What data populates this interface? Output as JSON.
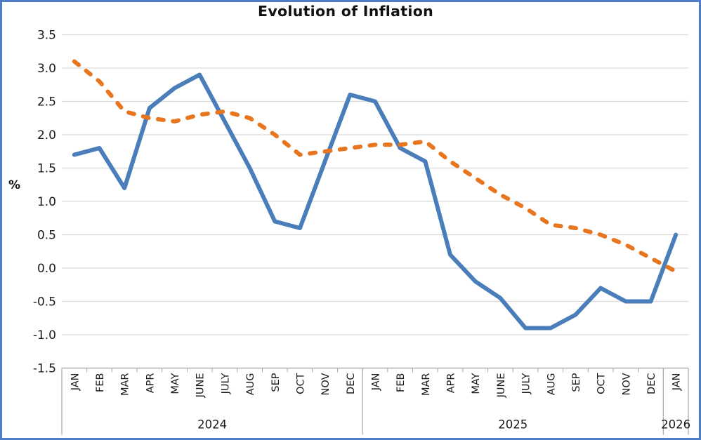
{
  "window": {
    "background_color": "#ffffff",
    "border_color": "#4f7dc8"
  },
  "chart_data": {
    "type": "line",
    "title": "Evolution of Inflation",
    "ylabel": "%",
    "xlabel": "",
    "ylim": [
      -1.5,
      3.5
    ],
    "ytick_step": 0.5,
    "ytick_labels": [
      "3.5",
      "3.0",
      "2.5",
      "2.0",
      "1.5",
      "1.0",
      "0.5",
      "0.0",
      "-0.5",
      "-1.0",
      "-1.5"
    ],
    "grid": true,
    "legend_position": "none",
    "categories": [
      "JAN",
      "FEB",
      "MAR",
      "APR",
      "MAY",
      "JUNE",
      "JULY",
      "AUG",
      "SEP",
      "OCT",
      "NOV",
      "DEC",
      "JAN",
      "FEB",
      "MAR",
      "APR",
      "MAY",
      "JUNE",
      "JULY",
      "AUG",
      "SEP",
      "OCT",
      "NOV",
      "DEC",
      "JAN"
    ],
    "year_groups": [
      {
        "label": "2024",
        "months": 12
      },
      {
        "label": "2025",
        "months": 12
      },
      {
        "label": "2026",
        "months": 1
      }
    ],
    "series": [
      {
        "name": "blue-solid-line",
        "line_style": "solid",
        "color": "#4a7ebb",
        "values": [
          1.7,
          1.8,
          1.2,
          2.4,
          2.7,
          2.9,
          2.2,
          1.5,
          0.7,
          0.6,
          1.6,
          2.6,
          2.5,
          1.8,
          1.6,
          0.2,
          -0.2,
          -0.45,
          -0.9,
          -0.9,
          -0.7,
          -0.3,
          -0.5,
          -0.5,
          0.5
        ]
      },
      {
        "name": "orange-dashed-line",
        "line_style": "dashed",
        "color": "#e8761f",
        "values": [
          3.1,
          2.8,
          2.35,
          2.25,
          2.2,
          2.3,
          2.35,
          2.25,
          2.0,
          1.7,
          1.75,
          1.8,
          1.85,
          1.85,
          1.9,
          1.6,
          1.35,
          1.1,
          0.9,
          0.65,
          0.6,
          0.5,
          0.35,
          0.15,
          -0.05
        ]
      }
    ],
    "colors": {
      "gridline": "#d9d9d9",
      "axis": "#a6a6a6",
      "tick": "#a6a6a6",
      "label_text": "#1a1a1a"
    }
  }
}
